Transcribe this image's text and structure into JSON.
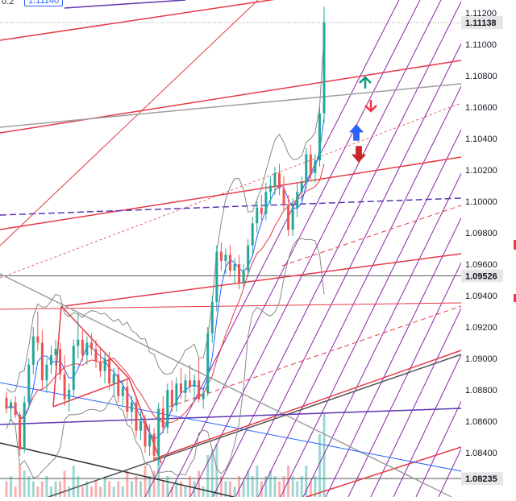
{
  "header": {
    "left_value": "0.2",
    "price_box": "1.11140"
  },
  "colors": {
    "bull": "#26a69a",
    "bear": "#ef5350",
    "channel": "#e53945",
    "purple": "#8e24aa",
    "gray": "#9e9e9e",
    "dark": "#555555",
    "bb": "#888888",
    "ma_blue": "#2962ff",
    "arrow_green": "#089981",
    "arrow_red": "#f23645",
    "arrow_blue": "#2962ff",
    "arrow_darkred": "#c62828"
  },
  "chart_data": {
    "type": "candlestick",
    "y_axis": {
      "min": 1.0818,
      "max": 1.1126,
      "ticks": [
        "1.11200",
        "1.11000",
        "1.10800",
        "1.10600",
        "1.10400",
        "1.10200",
        "1.10000",
        "1.09800",
        "1.09600",
        "1.09400",
        "1.09200",
        "1.09000",
        "1.08800",
        "1.08600",
        "1.08400"
      ]
    },
    "price_labels": [
      {
        "text": "1.11138",
        "value": 1.11138
      },
      {
        "text": "1.09526",
        "value": 1.09526
      },
      {
        "text": "1.08235",
        "value": 1.08235
      }
    ],
    "candles": [
      [
        1.0875,
        1.0879,
        1.0865,
        1.0868
      ],
      [
        1.0868,
        1.0874,
        1.086,
        1.0872
      ],
      [
        1.0872,
        1.0876,
        1.0862,
        1.0864
      ],
      [
        1.0864,
        1.0866,
        1.0838,
        1.0842
      ],
      [
        1.0842,
        1.0876,
        1.084,
        1.0872
      ],
      [
        1.0872,
        1.09,
        1.0868,
        1.0896
      ],
      [
        1.0896,
        1.092,
        1.089,
        1.0914
      ],
      [
        1.0914,
        1.093,
        1.0905,
        1.091
      ],
      [
        1.091,
        1.0918,
        1.088,
        1.0886
      ],
      [
        1.0886,
        1.09,
        1.0878,
        1.0896
      ],
      [
        1.0896,
        1.0908,
        1.089,
        1.0902
      ],
      [
        1.0902,
        1.0912,
        1.0895,
        1.0906
      ],
      [
        1.0906,
        1.091,
        1.0886,
        1.089
      ],
      [
        1.089,
        1.0902,
        1.087,
        1.0874
      ],
      [
        1.0874,
        1.0884,
        1.0866,
        1.088
      ],
      [
        1.088,
        1.0912,
        1.0876,
        1.0908
      ],
      [
        1.0908,
        1.0928,
        1.09,
        1.0912
      ],
      [
        1.0912,
        1.0918,
        1.0898,
        1.0902
      ],
      [
        1.0902,
        1.0914,
        1.0896,
        1.091
      ],
      [
        1.091,
        1.0916,
        1.0902,
        1.0906
      ],
      [
        1.0906,
        1.0912,
        1.0894,
        1.0898
      ],
      [
        1.0898,
        1.0906,
        1.0888,
        1.0892
      ],
      [
        1.0892,
        1.0904,
        1.0884,
        1.09
      ],
      [
        1.09,
        1.0904,
        1.088,
        1.0884
      ],
      [
        1.0884,
        1.0894,
        1.0876,
        1.089
      ],
      [
        1.089,
        1.0894,
        1.0872,
        1.0876
      ],
      [
        1.0876,
        1.0886,
        1.087,
        1.0882
      ],
      [
        1.0882,
        1.0886,
        1.0862,
        1.0866
      ],
      [
        1.0866,
        1.0876,
        1.0858,
        1.0872
      ],
      [
        1.0872,
        1.0876,
        1.085,
        1.0854
      ],
      [
        1.0854,
        1.0866,
        1.0848,
        1.086
      ],
      [
        1.086,
        1.0864,
        1.084,
        1.0844
      ],
      [
        1.0844,
        1.0858,
        1.0838,
        1.0852
      ],
      [
        1.0852,
        1.0856,
        1.0834,
        1.0838
      ],
      [
        1.0838,
        1.0872,
        1.0832,
        1.0868
      ],
      [
        1.0868,
        1.0876,
        1.0852,
        1.0856
      ],
      [
        1.0856,
        1.0884,
        1.0852,
        1.088
      ],
      [
        1.088,
        1.0886,
        1.0866,
        1.087
      ],
      [
        1.087,
        1.0888,
        1.0866,
        1.0884
      ],
      [
        1.0884,
        1.0894,
        1.0874,
        1.0878
      ],
      [
        1.0878,
        1.089,
        1.0872,
        1.0886
      ],
      [
        1.0886,
        1.0896,
        1.0878,
        1.0882
      ],
      [
        1.0882,
        1.089,
        1.0872,
        1.0886
      ],
      [
        1.0886,
        1.09,
        1.0872,
        1.0874
      ],
      [
        1.0874,
        1.0882,
        1.0868,
        1.0878
      ],
      [
        1.0878,
        1.092,
        1.0876,
        1.0916
      ],
      [
        1.0916,
        1.094,
        1.091,
        1.0936
      ],
      [
        1.0936,
        1.0972,
        1.093,
        1.0968
      ],
      [
        1.0968,
        1.0974,
        1.0956,
        1.0962
      ],
      [
        1.0962,
        1.097,
        1.0954,
        1.0966
      ],
      [
        1.0966,
        1.0972,
        1.0952,
        1.0956
      ],
      [
        1.0956,
        1.0964,
        1.0948,
        1.096
      ],
      [
        1.096,
        1.0966,
        1.0944,
        1.0948
      ],
      [
        1.0948,
        1.096,
        1.0944,
        1.0956
      ],
      [
        1.0956,
        1.0976,
        1.0952,
        1.0972
      ],
      [
        1.0972,
        1.099,
        1.0966,
        1.0986
      ],
      [
        1.0986,
        1.1,
        1.098,
        1.0996
      ],
      [
        1.0996,
        1.1004,
        1.0988,
        1.0992
      ],
      [
        1.0992,
        1.1012,
        1.0988,
        1.1006
      ],
      [
        1.1006,
        1.1016,
        1.0998,
        1.101
      ],
      [
        1.101,
        1.1022,
        1.1004,
        1.1018
      ],
      [
        1.1018,
        1.1024,
        1.1004,
        1.1008
      ],
      [
        1.1008,
        1.1016,
        1.0994,
        1.0998
      ],
      [
        1.0998,
        1.1004,
        1.0978,
        1.0982
      ],
      [
        1.0982,
        1.1002,
        1.0978,
        1.0996
      ],
      [
        1.0996,
        1.1012,
        1.099,
        1.1006
      ],
      [
        1.1006,
        1.1016,
        1.1,
        1.1012
      ],
      [
        1.1012,
        1.1034,
        1.1008,
        1.103
      ],
      [
        1.103,
        1.1036,
        1.1014,
        1.1018
      ],
      [
        1.1018,
        1.103,
        1.1012,
        1.1026
      ],
      [
        1.1026,
        1.106,
        1.1022,
        1.1056
      ],
      [
        1.1056,
        1.1124,
        1.105,
        1.1114
      ]
    ],
    "volumes": [
      3,
      4,
      2,
      6,
      5,
      4,
      3,
      2,
      3,
      4,
      2,
      3,
      3,
      5,
      2,
      6,
      4,
      2,
      3,
      2,
      3,
      2,
      4,
      3,
      2,
      3,
      2,
      5,
      3,
      4,
      3,
      6,
      4,
      5,
      7,
      3,
      4,
      2,
      3,
      3,
      2,
      4,
      3,
      5,
      2,
      8,
      9,
      10,
      4,
      3,
      3,
      2,
      4,
      3,
      5,
      4,
      6,
      3,
      4,
      5,
      4,
      3,
      4,
      6,
      4,
      3,
      4,
      6,
      3,
      4,
      12,
      16
    ],
    "series": [
      {
        "type": "bollinger"
      },
      {
        "type": "moving-average"
      }
    ]
  }
}
